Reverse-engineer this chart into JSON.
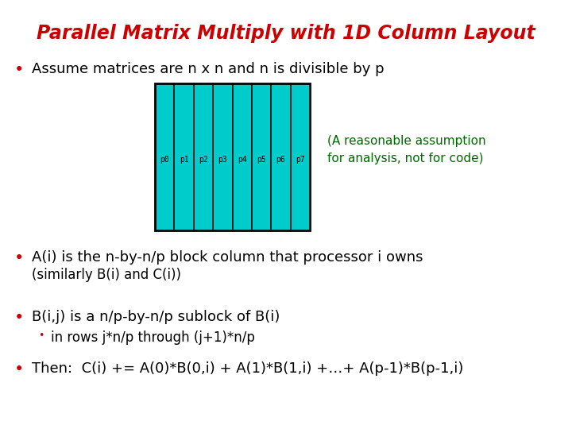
{
  "title": "Parallel Matrix Multiply with 1D Column Layout",
  "title_color": "#CC0000",
  "background_color": "#FFFFFF",
  "bullet_color": "#CC0000",
  "text_color": "#000000",
  "green_text_color": "#006600",
  "matrix_fill_color": "#00CCCC",
  "matrix_border_color": "#000000",
  "num_columns": 8,
  "column_labels": [
    "p0",
    "p1",
    "p2",
    "p3",
    "p4",
    "p5",
    "p6",
    "p7"
  ],
  "annotation_line1": "(A reasonable assumption",
  "annotation_line2": "for analysis, not for code)",
  "bullet1": "Assume matrices are n x n and n is divisible by p",
  "bullet2": "A(i) is the n-by-n/p block column that processor i owns",
  "bullet2b": "(similarly B(i) and C(i))",
  "bullet3": "B(i,j) is a n/p-by-n/p sublock of B(i)",
  "bullet3b": "in rows j*n/p through (j+1)*n/p",
  "bullet4": "Then:  C(i) += A(0)*B(0,i) + A(1)*B(1,i) +…+ A(p-1)*B(p-1,i)"
}
